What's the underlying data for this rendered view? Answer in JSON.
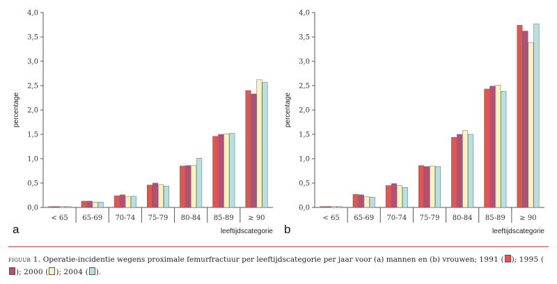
{
  "chart_data": [
    {
      "type": "bar",
      "panel_label": "a",
      "title": "",
      "xlabel": "leeftijdscategorie",
      "ylabel": "percentage",
      "ylim": [
        0,
        4
      ],
      "yticks": [
        "0,0",
        "0,5",
        "1,0",
        "1,5",
        "2,0",
        "2,5",
        "3,0",
        "3,5",
        "4,0"
      ],
      "categories": [
        "< 65",
        "65-69",
        "70-74",
        "75-79",
        "80-84",
        "85-89",
        "≥ 90"
      ],
      "series": [
        {
          "name": "1991",
          "values": [
            0.02,
            0.13,
            0.24,
            0.46,
            0.85,
            1.46,
            2.4
          ]
        },
        {
          "name": "1995",
          "values": [
            0.02,
            0.13,
            0.26,
            0.5,
            0.86,
            1.5,
            2.33
          ]
        },
        {
          "name": "2000",
          "values": [
            0.02,
            0.11,
            0.22,
            0.47,
            0.86,
            1.51,
            2.62
          ]
        },
        {
          "name": "2004",
          "values": [
            0.02,
            0.11,
            0.23,
            0.44,
            1.01,
            1.52,
            2.57
          ]
        }
      ]
    },
    {
      "type": "bar",
      "panel_label": "b",
      "title": "",
      "xlabel": "leeftijdscategorie",
      "ylabel": "percentage",
      "ylim": [
        0,
        4
      ],
      "yticks": [
        "0,0",
        "0,5",
        "1,0",
        "1,5",
        "2,0",
        "2,5",
        "3,0",
        "3,5",
        "4,0"
      ],
      "categories": [
        "< 65",
        "65-69",
        "70-74",
        "75-79",
        "80-84",
        "85-89",
        "≥ 90"
      ],
      "series": [
        {
          "name": "1991",
          "values": [
            0.02,
            0.27,
            0.45,
            0.86,
            1.44,
            2.43,
            3.74
          ]
        },
        {
          "name": "1995",
          "values": [
            0.02,
            0.26,
            0.49,
            0.84,
            1.5,
            2.49,
            3.62
          ]
        },
        {
          "name": "2000",
          "values": [
            0.02,
            0.22,
            0.45,
            0.85,
            1.58,
            2.51,
            3.38
          ]
        },
        {
          "name": "2004",
          "values": [
            0.02,
            0.21,
            0.41,
            0.84,
            1.5,
            2.38,
            3.77
          ]
        }
      ]
    }
  ],
  "series_colors": [
    "#e8534d",
    "#b34f78",
    "#fbf3bd",
    "#b5e1e2"
  ],
  "caption": {
    "label": "figuur 1.",
    "text": "Operatie-incidentie wegens proximale femurfractuur per leeftijdscategorie per jaar voor (a) mannen en (b) vrouwen;",
    "legend": [
      {
        "year": "1991",
        "sep": ";"
      },
      {
        "year": "1995",
        "sep": ";"
      },
      {
        "year": "2000",
        "sep": ";"
      },
      {
        "year": "2004",
        "sep": "."
      }
    ]
  }
}
